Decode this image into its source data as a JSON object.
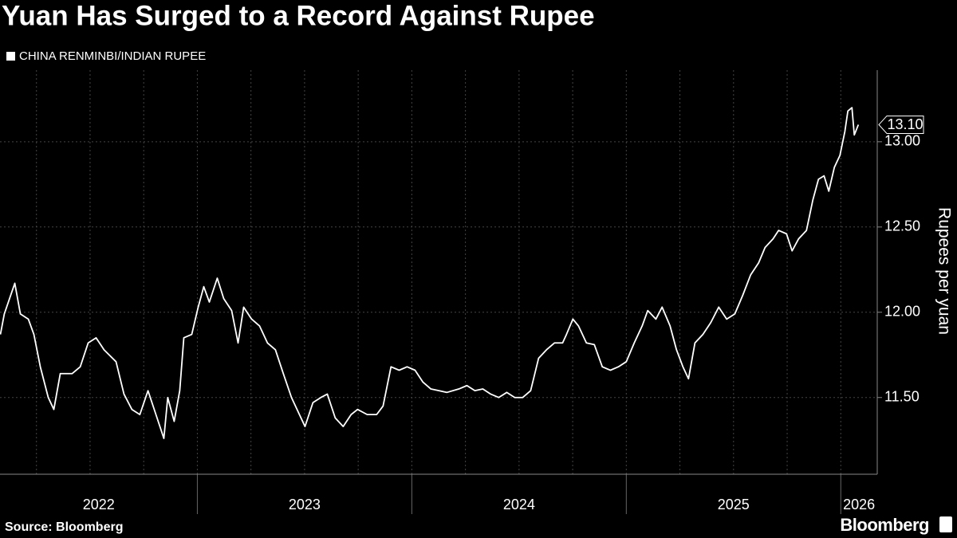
{
  "chart_data": {
    "type": "line",
    "title": "Yuan Has Surged to a Record Against Rupee",
    "y_label": "Rupees per yuan",
    "source": "Source: Bloomberg",
    "brand": "Bloomberg",
    "grid": true,
    "background": "#000000",
    "xlim": [
      2022.08,
      2026.17
    ],
    "ylim": [
      11.05,
      13.42
    ],
    "xticks": [
      2022,
      2023,
      2024,
      2025,
      2026
    ],
    "x_grid": [
      2022.25,
      2022.5,
      2022.75,
      2023.25,
      2023.5,
      2023.75,
      2024.25,
      2024.5,
      2024.75,
      2025.25,
      2025.5,
      2025.75
    ],
    "yticks": [
      {
        "value": 11.5,
        "label": "11.50"
      },
      {
        "value": 12,
        "label": "12.00"
      },
      {
        "value": 12.5,
        "label": "12.50"
      },
      {
        "value": 13,
        "label": "13.00"
      }
    ],
    "series": [
      {
        "name": "CHINA RENMINBI/INDIAN RUPEE",
        "color": "#ffffff",
        "x": [
          2022.082,
          2022.1,
          2022.149,
          2022.175,
          2022.212,
          2022.238,
          2022.268,
          2022.305,
          2022.331,
          2022.361,
          2022.416,
          2022.454,
          2022.491,
          2022.528,
          2022.565,
          2022.621,
          2022.658,
          2022.695,
          2022.732,
          2022.77,
          2022.807,
          2022.844,
          2022.862,
          2022.892,
          2022.918,
          2022.937,
          2022.974,
          2023.004,
          2023.03,
          2023.056,
          2023.093,
          2023.123,
          2023.16,
          2023.19,
          2023.216,
          2023.253,
          2023.29,
          2023.327,
          2023.364,
          2023.401,
          2023.439,
          2023.476,
          2023.502,
          2023.539,
          2023.576,
          2023.606,
          2023.643,
          2023.68,
          2023.717,
          2023.747,
          2023.792,
          2023.836,
          2023.866,
          2023.903,
          2023.941,
          2023.978,
          2024.015,
          2024.052,
          2024.089,
          2024.126,
          2024.164,
          2024.219,
          2024.257,
          2024.294,
          2024.331,
          2024.368,
          2024.405,
          2024.443,
          2024.48,
          2024.517,
          2024.554,
          2024.591,
          2024.628,
          2024.665,
          2024.703,
          2024.721,
          2024.751,
          2024.777,
          2024.814,
          2024.851,
          2024.888,
          2024.926,
          2024.963,
          2025.0,
          2025.037,
          2025.074,
          2025.1,
          2025.138,
          2025.167,
          2025.204,
          2025.234,
          2025.264,
          2025.29,
          2025.32,
          2025.357,
          2025.394,
          2025.431,
          2025.468,
          2025.506,
          2025.543,
          2025.58,
          2025.617,
          2025.647,
          2025.684,
          2025.71,
          2025.747,
          2025.773,
          2025.803,
          2025.84,
          2025.87,
          2025.896,
          2025.922,
          2025.944,
          2025.97,
          2025.996,
          2026.019,
          2026.033,
          2026.052,
          2026.063,
          2026.082
        ],
        "values": [
          11.87,
          11.99,
          12.17,
          11.99,
          11.96,
          11.87,
          11.68,
          11.5,
          11.43,
          11.64,
          11.64,
          11.68,
          11.82,
          11.85,
          11.78,
          11.71,
          11.52,
          11.43,
          11.4,
          11.54,
          11.4,
          11.26,
          11.5,
          11.36,
          11.54,
          11.85,
          11.87,
          12.03,
          12.15,
          12.06,
          12.2,
          12.08,
          12.01,
          11.82,
          12.03,
          11.96,
          11.92,
          11.82,
          11.78,
          11.64,
          11.5,
          11.4,
          11.33,
          11.47,
          11.5,
          11.52,
          11.38,
          11.33,
          11.4,
          11.43,
          11.4,
          11.4,
          11.45,
          11.68,
          11.66,
          11.68,
          11.66,
          11.59,
          11.55,
          11.54,
          11.53,
          11.55,
          11.57,
          11.54,
          11.55,
          11.52,
          11.5,
          11.53,
          11.5,
          11.5,
          11.54,
          11.73,
          11.78,
          11.82,
          11.82,
          11.87,
          11.96,
          11.92,
          11.82,
          11.81,
          11.68,
          11.66,
          11.68,
          11.71,
          11.82,
          11.92,
          12.01,
          11.96,
          12.03,
          11.92,
          11.78,
          11.68,
          11.61,
          11.82,
          11.87,
          11.94,
          12.03,
          11.96,
          11.99,
          12.1,
          12.22,
          12.29,
          12.38,
          12.43,
          12.48,
          12.46,
          12.36,
          12.43,
          12.48,
          12.66,
          12.78,
          12.8,
          12.71,
          12.85,
          12.92,
          13.06,
          13.18,
          13.2,
          13.04,
          13.1
        ],
        "value_labels": [
          null,
          null,
          null,
          null,
          null,
          null,
          null,
          null,
          null,
          null,
          null,
          null,
          null,
          null,
          null,
          null,
          null,
          null,
          null,
          null,
          null,
          null,
          null,
          null,
          null,
          null,
          null,
          null,
          null,
          null,
          null,
          null,
          null,
          null,
          null,
          null,
          null,
          null,
          null,
          null,
          null,
          null,
          null,
          null,
          null,
          null,
          null,
          null,
          null,
          null,
          null,
          null,
          null,
          null,
          null,
          null,
          null,
          null,
          null,
          null,
          null,
          null,
          null,
          null,
          null,
          null,
          null,
          null,
          null,
          null,
          null,
          null,
          null,
          null,
          null,
          null,
          null,
          null,
          null,
          null,
          null,
          null,
          null,
          null,
          null,
          null,
          null,
          null,
          null,
          null,
          null,
          null,
          null,
          null,
          null,
          null,
          null,
          null,
          null,
          null,
          null,
          null,
          null,
          null,
          null,
          null,
          null,
          null,
          null,
          null,
          null,
          null,
          null,
          null,
          null,
          null,
          null,
          null,
          null,
          "13.10"
        ]
      }
    ]
  }
}
